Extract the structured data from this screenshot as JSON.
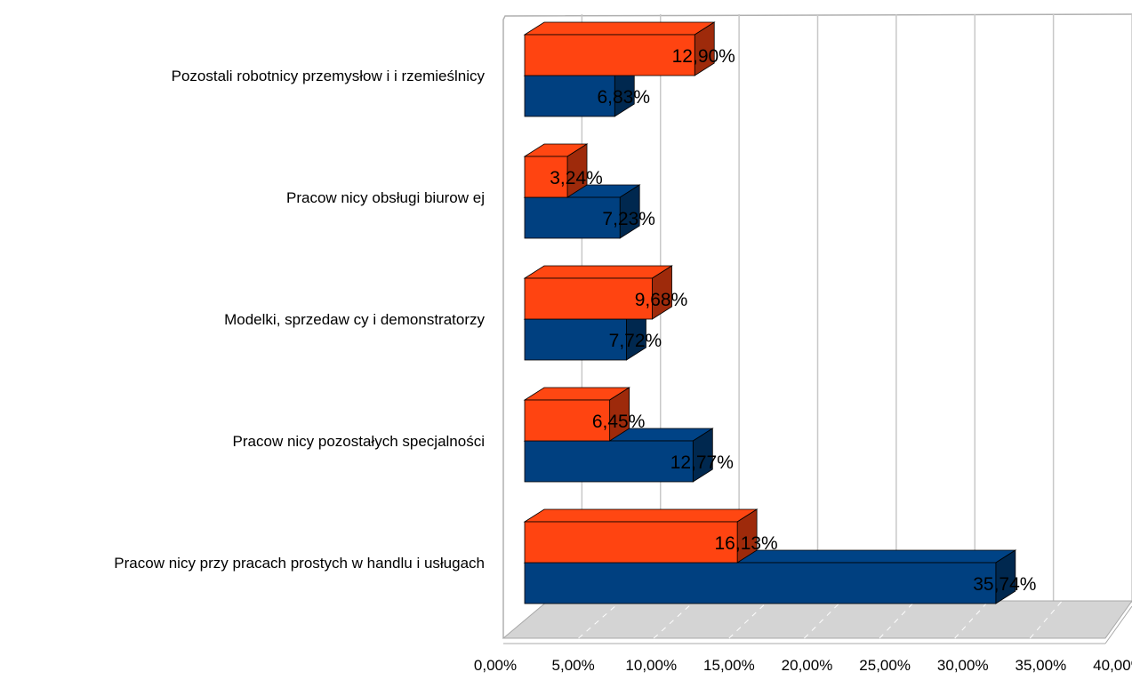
{
  "chart_data": {
    "type": "bar",
    "orientation": "horizontal",
    "style": "3d",
    "categories": [
      "Pozostali robotnicy przemysłow i i rzemieślnicy",
      "Pracow nicy obsługi biurow ej",
      "Modelki, sprzedaw cy i demonstratorzy",
      "Pracow nicy pozostałych specjalności",
      "Pracow nicy przy pracach prostych w  handlu i usługach"
    ],
    "series": [
      {
        "color": "#FF4411",
        "values": [
          12.9,
          3.24,
          9.68,
          6.45,
          16.13
        ],
        "labels": [
          "12,90%",
          "3,24%",
          "9,68%",
          "6,45%",
          "16,13%"
        ]
      },
      {
        "color": "#004080",
        "values": [
          6.83,
          7.23,
          7.72,
          12.77,
          35.74
        ],
        "labels": [
          "6,83%",
          "7,23%",
          "7,72%",
          "12,77%",
          "35,74%"
        ]
      }
    ],
    "xlim": [
      0,
      40
    ],
    "x_ticks": [
      0,
      5,
      10,
      15,
      20,
      25,
      30,
      35,
      40
    ],
    "x_tick_labels": [
      "0,00%",
      "5,00%",
      "10,00%",
      "15,00%",
      "20,00%",
      "25,00%",
      "30,00%",
      "35,00%",
      "40,00%"
    ],
    "title": "",
    "xlabel": "",
    "ylabel": "",
    "grid": true,
    "legend": "none"
  }
}
